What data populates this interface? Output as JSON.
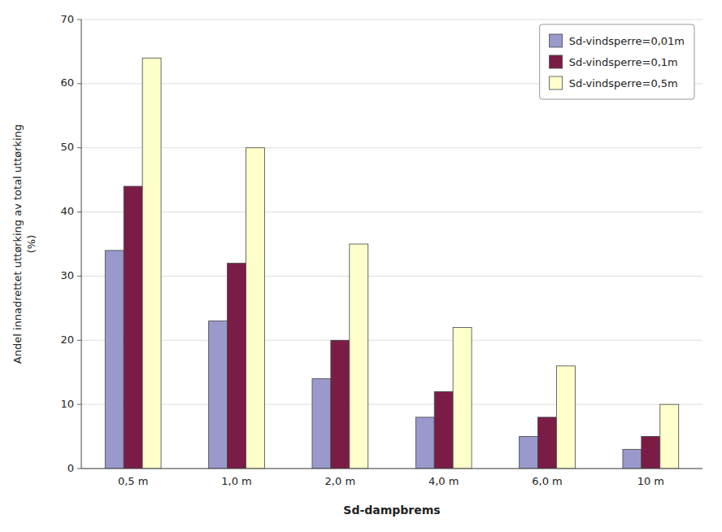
{
  "chart_data": {
    "type": "bar",
    "categories": [
      "0,5 m",
      "1,0 m",
      "2,0 m",
      "4,0 m",
      "6,0 m",
      "10 m"
    ],
    "series": [
      {
        "name": "Sd-vindsperre=0,01m",
        "color": "#9999CC",
        "values": [
          34,
          23,
          14,
          8,
          5,
          3
        ]
      },
      {
        "name": "Sd-vindsperre=0,1m",
        "color": "#7B1C47",
        "values": [
          44,
          32,
          20,
          12,
          8,
          5
        ]
      },
      {
        "name": "Sd-vindsperre=0,5m",
        "color": "#FFFFCC",
        "values": [
          64,
          50,
          35,
          22,
          16,
          10
        ]
      }
    ],
    "xlabel": "Sd-dampbrems",
    "ylabel": "Andel innadrettet uttørking av total uttørking\n(%)",
    "ylim": [
      0,
      70
    ],
    "yticks": [
      0,
      10,
      20,
      30,
      40,
      50,
      60,
      70
    ],
    "grid": true,
    "legend": "upper right"
  }
}
